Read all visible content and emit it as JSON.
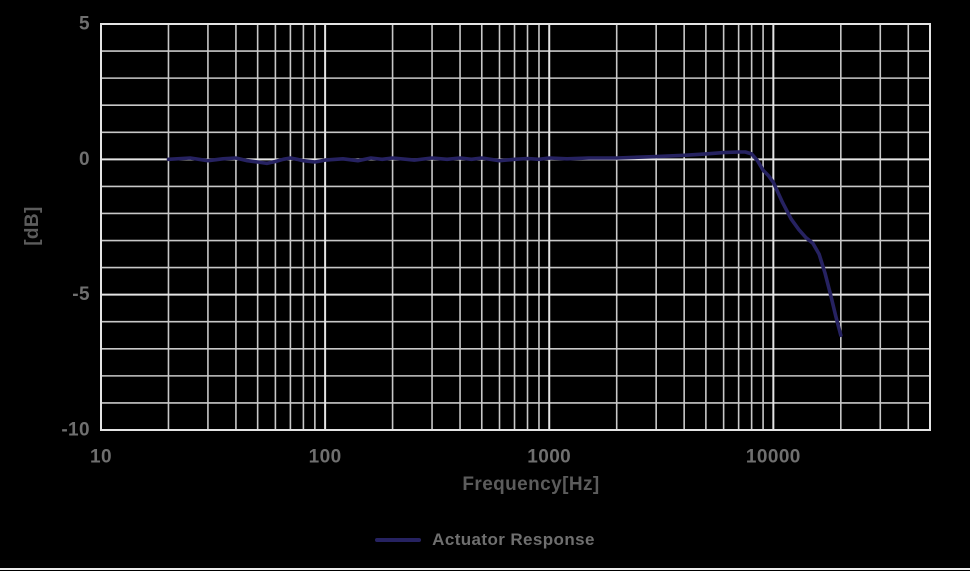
{
  "chart_data": {
    "type": "line",
    "title": "",
    "xlabel": "Frequency[Hz]",
    "ylabel": "[dB]",
    "x_scale": "log",
    "xlim": [
      10,
      50000
    ],
    "ylim": [
      -10,
      5
    ],
    "x_ticks": [
      10,
      100,
      1000,
      10000
    ],
    "y_ticks": [
      5,
      0,
      -5,
      -10
    ],
    "y_minor_step": 1,
    "grid": true,
    "legend_position": "bottom-center",
    "colors": {
      "background": "#000000",
      "grid_minor": "#c8c8c8",
      "grid_major": "#e4e4e4",
      "axis_border": "#e4e4e4",
      "tick_label": "#6f6f6f",
      "axis_title": "#5c5c5c",
      "curve": "#262261"
    },
    "series": [
      {
        "name": "Actuator Response",
        "color": "#262261",
        "points": [
          [
            20,
            0
          ],
          [
            25,
            0.05
          ],
          [
            30,
            -0.05
          ],
          [
            35,
            0.02
          ],
          [
            40,
            0.05
          ],
          [
            45,
            -0.05
          ],
          [
            50,
            -0.1
          ],
          [
            55,
            -0.15
          ],
          [
            60,
            -0.08
          ],
          [
            65,
            0
          ],
          [
            70,
            0.05
          ],
          [
            75,
            0
          ],
          [
            80,
            -0.05
          ],
          [
            90,
            -0.1
          ],
          [
            100,
            -0.03
          ],
          [
            120,
            0.02
          ],
          [
            140,
            -0.05
          ],
          [
            160,
            0.05
          ],
          [
            180,
            0
          ],
          [
            200,
            0.05
          ],
          [
            250,
            -0.03
          ],
          [
            300,
            0.05
          ],
          [
            350,
            0
          ],
          [
            400,
            0.05
          ],
          [
            450,
            0
          ],
          [
            500,
            0.05
          ],
          [
            600,
            -0.05
          ],
          [
            700,
            0
          ],
          [
            800,
            0.03
          ],
          [
            900,
            0
          ],
          [
            1000,
            0.05
          ],
          [
            1200,
            0.02
          ],
          [
            1500,
            0.05
          ],
          [
            2000,
            0.05
          ],
          [
            2500,
            0.08
          ],
          [
            3000,
            0.1
          ],
          [
            4000,
            0.15
          ],
          [
            5000,
            0.2
          ],
          [
            6000,
            0.25
          ],
          [
            7000,
            0.27
          ],
          [
            7500,
            0.27
          ],
          [
            8000,
            0.2
          ],
          [
            8500,
            -0.05
          ],
          [
            9000,
            -0.4
          ],
          [
            9500,
            -0.6
          ],
          [
            10000,
            -0.85
          ],
          [
            11000,
            -1.6
          ],
          [
            12000,
            -2.2
          ],
          [
            13000,
            -2.6
          ],
          [
            14000,
            -2.9
          ],
          [
            15000,
            -3.1
          ],
          [
            16000,
            -3.5
          ],
          [
            17000,
            -4.2
          ],
          [
            18000,
            -5.0
          ],
          [
            19000,
            -5.8
          ],
          [
            20000,
            -6.5
          ]
        ]
      }
    ]
  },
  "legend": {
    "label": "Actuator Response"
  }
}
